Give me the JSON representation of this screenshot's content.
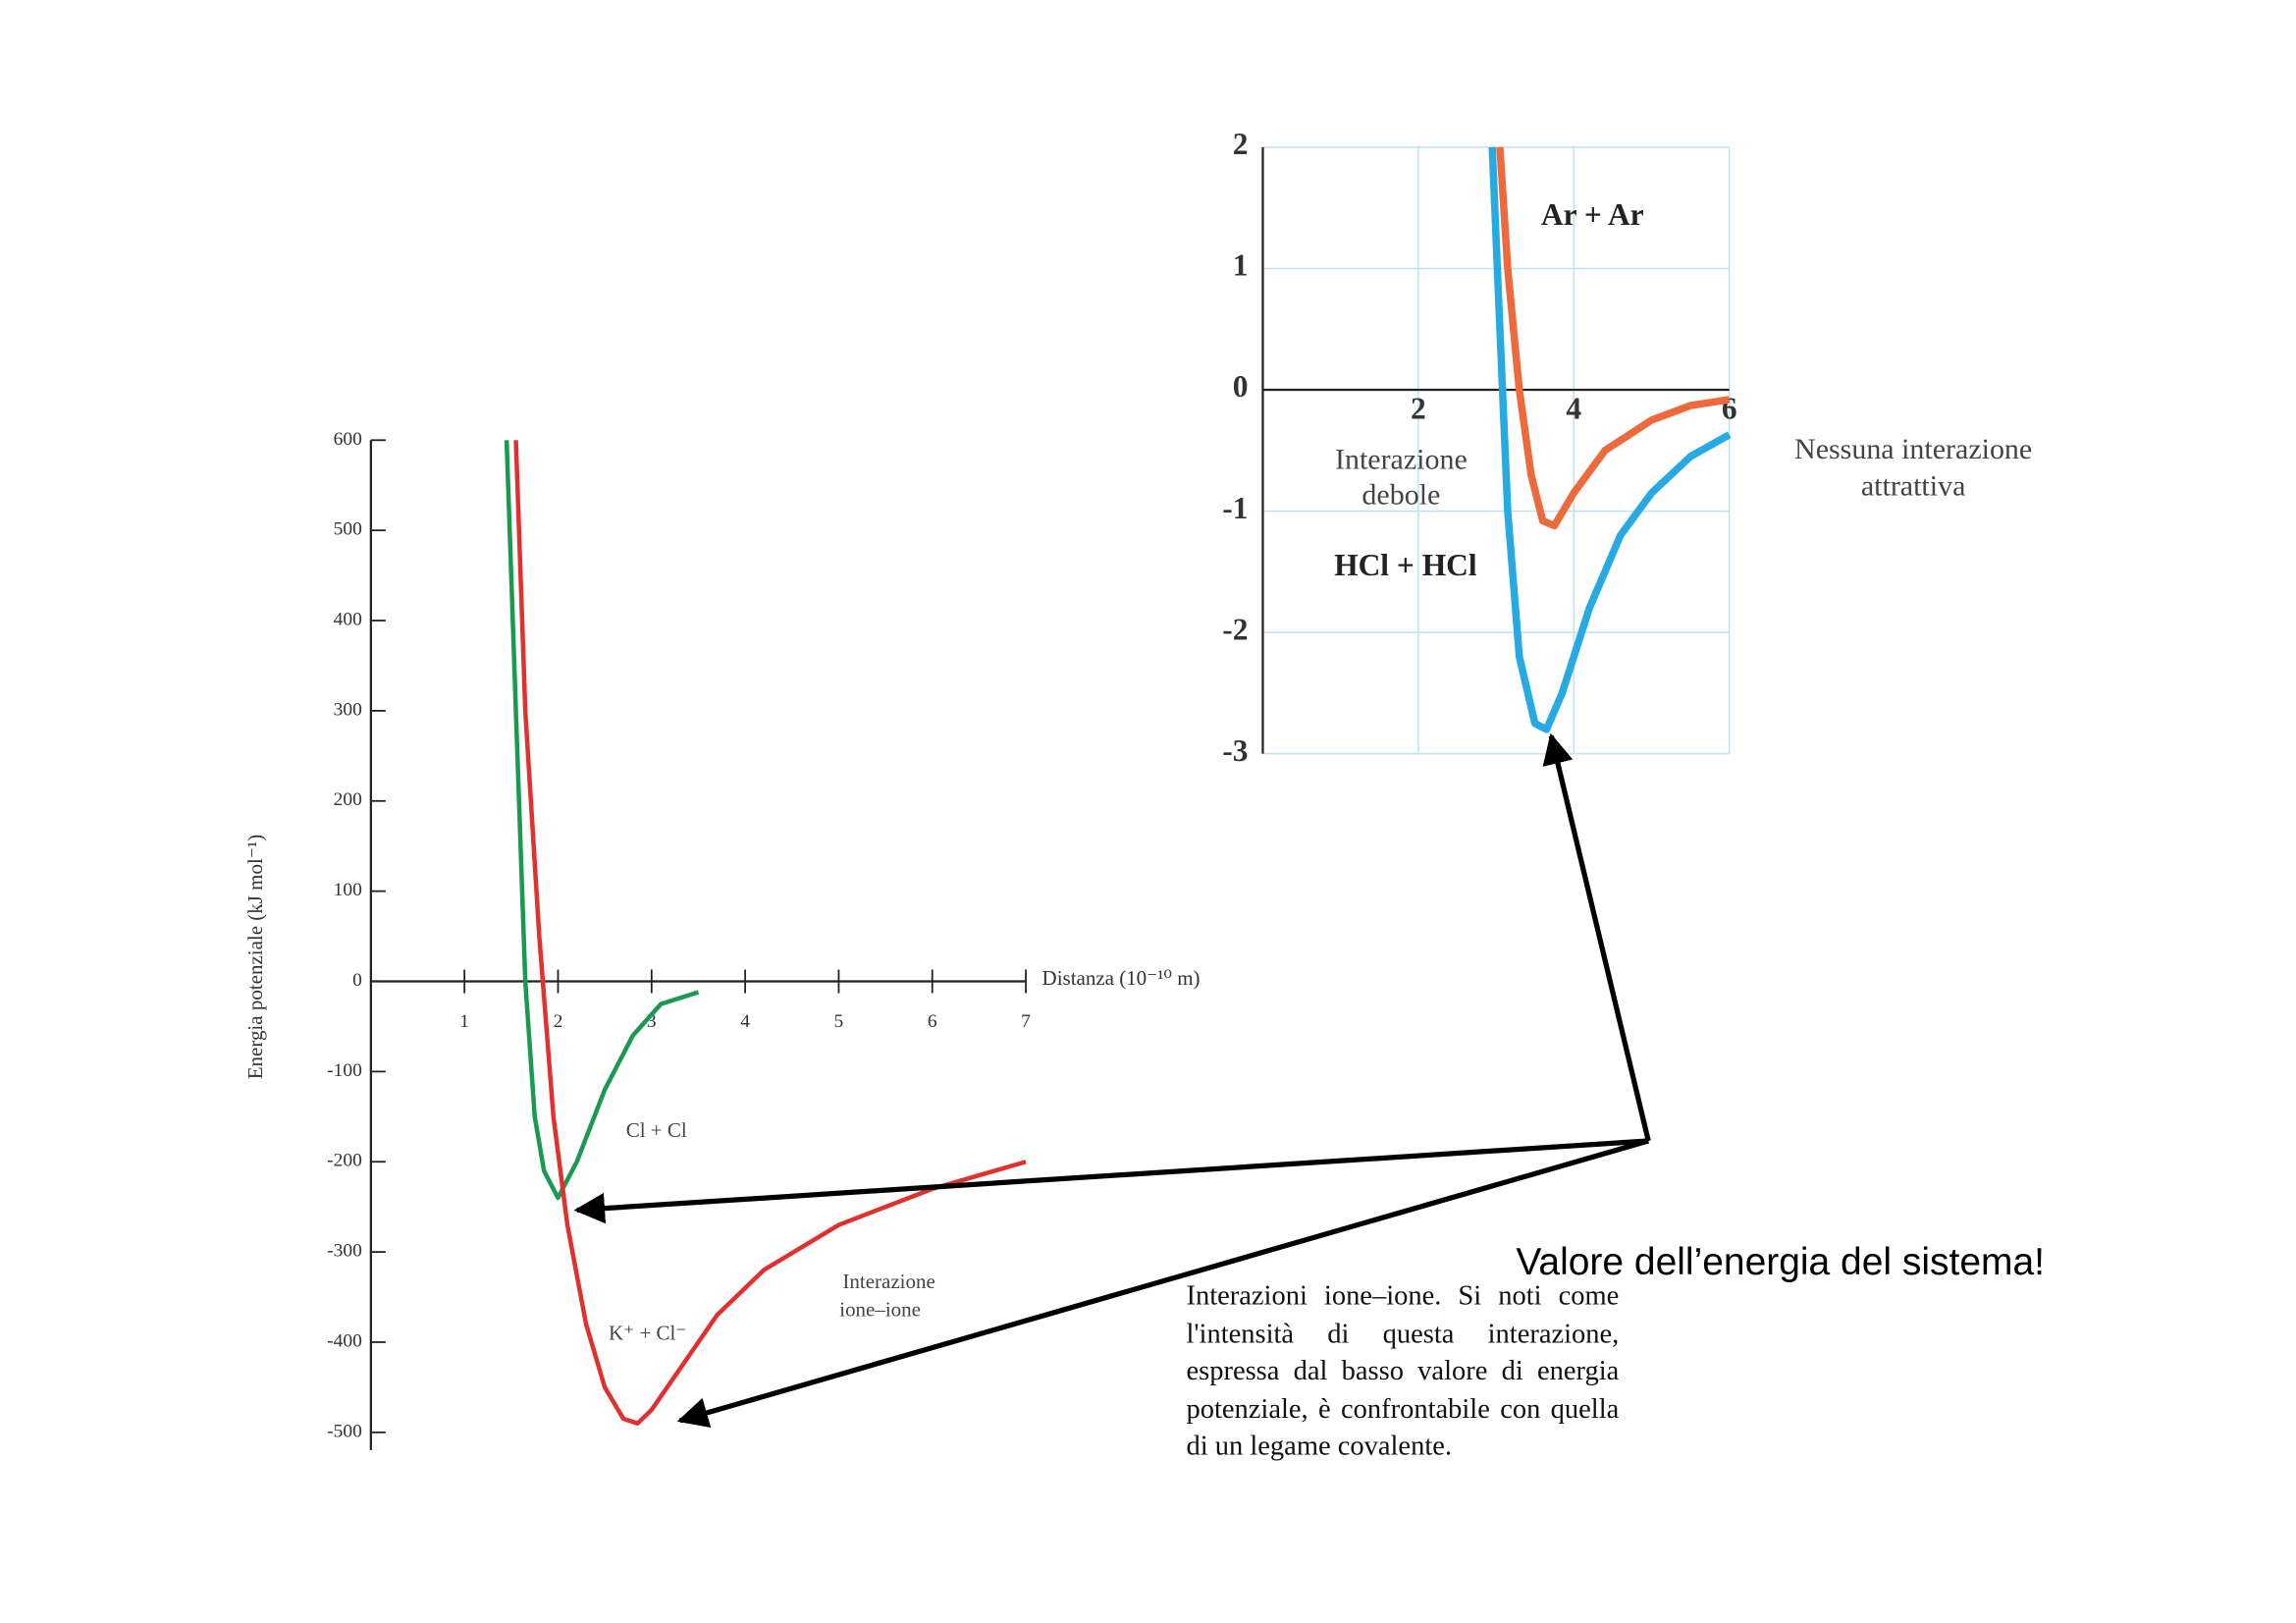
{
  "chart_data": [
    {
      "type": "line",
      "xlabel": "Distanza (10⁻¹⁰ m)",
      "ylabel": "Energia potenziale (kJ mol⁻¹)",
      "xlim": [
        0,
        7
      ],
      "ylim": [
        -500,
        600
      ],
      "xticks": [
        1,
        2,
        3,
        4,
        5,
        6,
        7
      ],
      "yticks": [
        600,
        500,
        400,
        300,
        200,
        100,
        0,
        -100,
        -200,
        -300,
        -400,
        -500
      ],
      "grid": false,
      "series": [
        {
          "name": "Cl + Cl",
          "color": "#1a9a50",
          "x": [
            1.45,
            1.55,
            1.65,
            1.75,
            1.85,
            2.0,
            2.2,
            2.5,
            2.8,
            3.1,
            3.5
          ],
          "values": [
            600,
            300,
            0,
            -150,
            -210,
            -240,
            -200,
            -120,
            -60,
            -25,
            -12
          ]
        },
        {
          "name": "K⁺ + Cl⁻",
          "color": "#e0302f",
          "x": [
            1.55,
            1.65,
            1.8,
            1.95,
            2.1,
            2.3,
            2.5,
            2.7,
            2.85,
            3.0,
            3.3,
            3.7,
            4.2,
            5,
            6,
            7
          ],
          "values": [
            600,
            300,
            50,
            -150,
            -270,
            -380,
            -450,
            -485,
            -490,
            -475,
            -430,
            -370,
            -320,
            -270,
            -230,
            -200
          ]
        }
      ],
      "annotations": [
        "Cl + Cl",
        "K⁺ + Cl⁻",
        "Interazione",
        "ione–ione"
      ],
      "caption": "Interazioni ione–ione. Si noti come l'intensità di questa interazione, espressa dal basso valore di energia potenziale, è confrontabile con quella di un legame covalente.",
      "note": "Valore dell’energia del sistema!"
    },
    {
      "type": "line",
      "xlim": [
        0,
        6
      ],
      "ylim": [
        -3,
        2
      ],
      "xticks": [
        2,
        4,
        6
      ],
      "yticks": [
        2,
        1,
        0,
        -1,
        -2,
        -3
      ],
      "grid": true,
      "series": [
        {
          "name": "Ar + Ar",
          "color": "#ec6a3c",
          "x": [
            3.05,
            3.15,
            3.3,
            3.45,
            3.6,
            3.75,
            4.0,
            4.4,
            5,
            5.5,
            6
          ],
          "values": [
            2,
            1,
            0,
            -0.7,
            -1.08,
            -1.12,
            -0.85,
            -0.5,
            -0.25,
            -0.13,
            -0.08
          ]
        },
        {
          "name": "HCl + HCl",
          "color": "#27a9e1",
          "x": [
            2.95,
            3.05,
            3.15,
            3.3,
            3.5,
            3.65,
            3.85,
            4.2,
            4.6,
            5,
            5.5,
            6
          ],
          "values": [
            2,
            0.5,
            -1,
            -2.2,
            -2.75,
            -2.8,
            -2.5,
            -1.8,
            -1.2,
            -0.85,
            -0.55,
            -0.37
          ]
        }
      ],
      "annotations": [
        "Interazione",
        "debole",
        "Nessuna interazione",
        "attrattiva"
      ]
    }
  ]
}
